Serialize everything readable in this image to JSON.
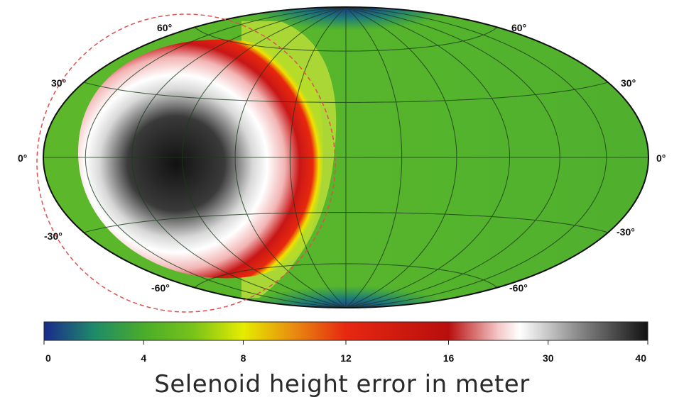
{
  "map": {
    "projection": "hammer-aitoff",
    "field": "selenoid height error",
    "latitude_labels_left": [
      "60°",
      "30°",
      "0°",
      "-30°",
      "-60°"
    ],
    "latitude_labels_right": [
      "60°",
      "30°",
      "0°",
      "-30°",
      "-60°"
    ],
    "outline_color": "#111111",
    "circle_color": "#e05050"
  },
  "colorbar": {
    "ticks": [
      "0",
      "4",
      "8",
      "12",
      "16",
      "30",
      "40"
    ],
    "stops": [
      {
        "value": 0,
        "color": "#1a2a8c"
      },
      {
        "value": 2,
        "color": "#1f8a6a"
      },
      {
        "value": 4,
        "color": "#4aac2a"
      },
      {
        "value": 6,
        "color": "#78c21a"
      },
      {
        "value": 8,
        "color": "#e6ec00"
      },
      {
        "value": 10,
        "color": "#e88a10"
      },
      {
        "value": 12,
        "color": "#e62810"
      },
      {
        "value": 16,
        "color": "#b80e0e"
      },
      {
        "value": 23,
        "color": "#f4c8c8"
      },
      {
        "value": 26,
        "color": "#ffffff"
      },
      {
        "value": 33,
        "color": "#8a8a8a"
      },
      {
        "value": 40,
        "color": "#111111"
      }
    ]
  },
  "caption": "Selenoid height error in meter"
}
